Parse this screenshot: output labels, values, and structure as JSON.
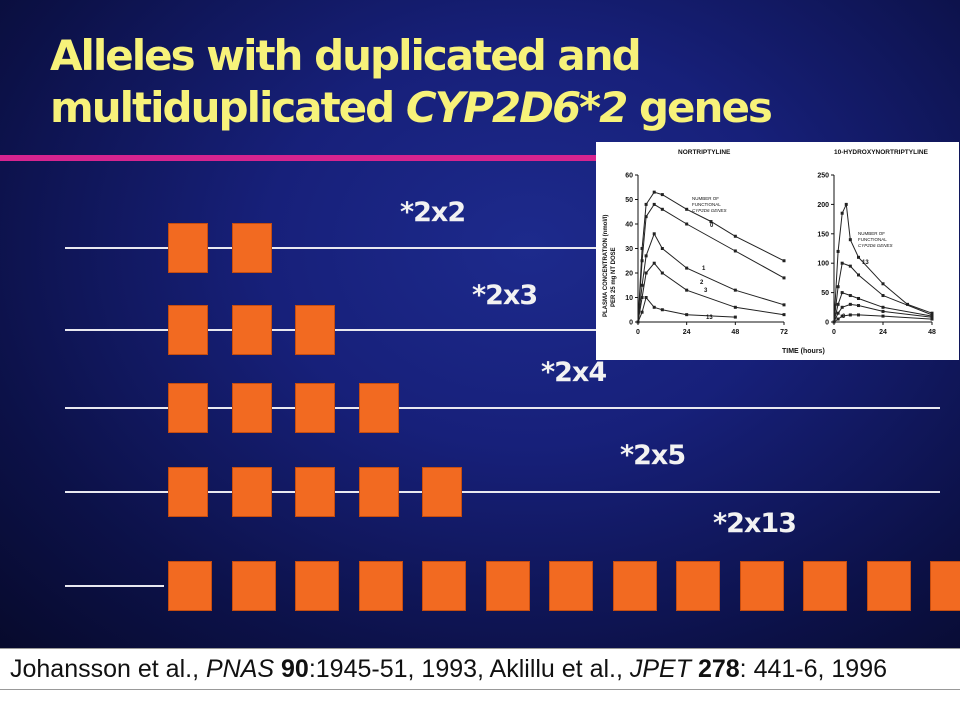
{
  "slide": {
    "title_line1": "Alleles with duplicated and",
    "title_line2_prefix": "multiduplicated ",
    "title_line2_gene": "CYP2D6*2",
    "title_line2_suffix": " genes",
    "colors": {
      "background": "#17207a",
      "title": "#f7f27a",
      "rule": "#d6248f",
      "gene_box": "#f26a21",
      "line": "#e8e8f0"
    },
    "alleles": [
      {
        "label": "*2x2",
        "copies": 2
      },
      {
        "label": "*2x3",
        "copies": 3
      },
      {
        "label": "*2x4",
        "copies": 4
      },
      {
        "label": "*2x5",
        "copies": 5
      },
      {
        "label": "*2x13",
        "copies": 13
      }
    ]
  },
  "figure": {
    "left_title": "NORTRIPTYLINE",
    "right_title": "10-HYDROXYNORTRIPTYLINE",
    "y_label_line1": "PLASMA CONCENTRATION (nmol/l)",
    "y_label_line2": "PER 25 mg NT DOSE",
    "x_label": "TIME (hours)",
    "legend_line1": "NUMBER OF",
    "legend_line2": "FUNCTIONAL",
    "legend_line3": "CYP2D6 GENES",
    "left_yticks": [
      "0",
      "10",
      "20",
      "30",
      "40",
      "50",
      "60"
    ],
    "left_xticks": [
      "0",
      "24",
      "48",
      "72"
    ],
    "right_yticks": [
      "0",
      "50",
      "100",
      "150",
      "200",
      "250"
    ],
    "right_xticks": [
      "0",
      "24",
      "48"
    ],
    "curve_labels_left": [
      "0",
      "1",
      "2",
      "3",
      "13"
    ],
    "curve_labels_right": [
      "13",
      "0"
    ]
  },
  "chart_data": [
    {
      "type": "line",
      "title": "NORTRIPTYLINE",
      "xlabel": "",
      "ylabel": "PLASMA CONCENTRATION (nmol/l) PER 25 mg NT DOSE",
      "xlim": [
        0,
        72
      ],
      "ylim": [
        0,
        60
      ],
      "series": [
        {
          "name": "0",
          "x": [
            0,
            2,
            4,
            8,
            12,
            24,
            36,
            48,
            72
          ],
          "y": [
            0,
            30,
            48,
            53,
            52,
            46,
            41,
            35,
            25
          ]
        },
        {
          "name": "1",
          "x": [
            0,
            2,
            4,
            8,
            12,
            24,
            48,
            72
          ],
          "y": [
            0,
            25,
            43,
            48,
            46,
            40,
            29,
            18
          ]
        },
        {
          "name": "2",
          "x": [
            0,
            2,
            4,
            8,
            12,
            24,
            48,
            72
          ],
          "y": [
            0,
            15,
            27,
            36,
            30,
            22,
            13,
            7
          ]
        },
        {
          "name": "3",
          "x": [
            0,
            2,
            4,
            8,
            12,
            24,
            48,
            72
          ],
          "y": [
            0,
            10,
            20,
            24,
            20,
            13,
            6,
            3
          ]
        },
        {
          "name": "13",
          "x": [
            0,
            2,
            4,
            8,
            12,
            24,
            48
          ],
          "y": [
            0,
            4,
            10,
            6,
            5,
            3,
            2
          ]
        }
      ]
    },
    {
      "type": "line",
      "title": "10-HYDROXYNORTRIPTYLINE",
      "xlabel": "TIME (hours)",
      "ylabel": "",
      "xlim": [
        0,
        48
      ],
      "ylim": [
        0,
        250
      ],
      "series": [
        {
          "name": "13",
          "x": [
            0,
            2,
            4,
            6,
            8,
            12,
            24,
            36,
            48
          ],
          "y": [
            0,
            120,
            185,
            200,
            140,
            110,
            65,
            30,
            15
          ]
        },
        {
          "name": "",
          "x": [
            0,
            2,
            4,
            8,
            12,
            24,
            48
          ],
          "y": [
            0,
            60,
            100,
            95,
            80,
            45,
            12
          ]
        },
        {
          "name": "",
          "x": [
            0,
            2,
            4,
            8,
            12,
            24,
            48
          ],
          "y": [
            0,
            30,
            50,
            45,
            40,
            25,
            10
          ]
        },
        {
          "name": "",
          "x": [
            0,
            2,
            4,
            8,
            12,
            24,
            48
          ],
          "y": [
            0,
            15,
            25,
            30,
            28,
            18,
            8
          ]
        },
        {
          "name": "0",
          "x": [
            0,
            2,
            4,
            8,
            12,
            24,
            48
          ],
          "y": [
            0,
            5,
            10,
            12,
            12,
            10,
            5
          ]
        }
      ]
    }
  ],
  "citation": {
    "part1": "Johansson et al., ",
    "journal1": "PNAS",
    "volume1": " 90",
    "pages1": ":1945-51, 1993, Aklillu et al., ",
    "journal2": "JPET",
    "volume2": " 278",
    "pages2": ": 441-6, 1996"
  }
}
